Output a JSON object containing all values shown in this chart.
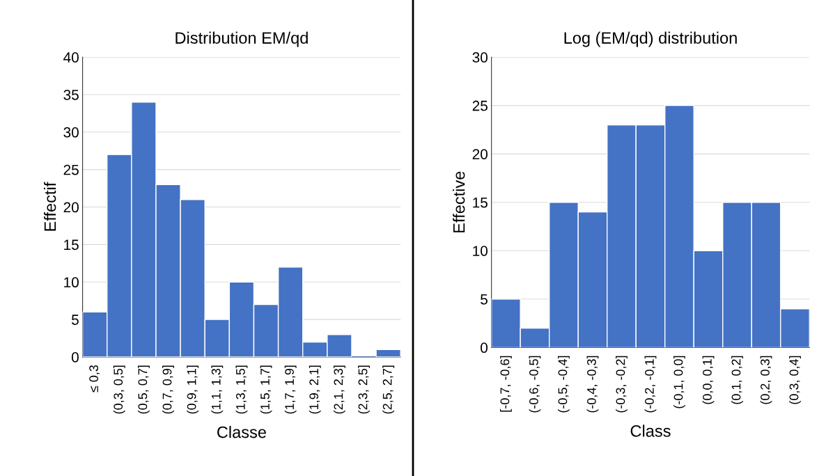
{
  "chart_data": [
    {
      "type": "bar",
      "title": "Distribution EM/qd",
      "xlabel": "Classe",
      "ylabel": "Effectif",
      "categories": [
        "≤ 0,3",
        "(0,3, 0,5]",
        "(0,5, 0,7]",
        "(0,7, 0,9]",
        "(0,9, 1,1]",
        "(1,1, 1,3]",
        "(1,3, 1,5]",
        "(1,5, 1,7]",
        "(1,7, 1,9]",
        "(1,9, 2,1]",
        "(2,1, 2,3]",
        "(2,3, 2,5]",
        "(2,5, 2,7]"
      ],
      "values": [
        6,
        27,
        34,
        23,
        21,
        5,
        10,
        7,
        12,
        2,
        3,
        0,
        1
      ],
      "color": "#4472c4",
      "ylim": [
        0,
        40
      ],
      "yticks": [
        0,
        5,
        10,
        15,
        20,
        25,
        30,
        35,
        40
      ],
      "grid": "y",
      "legend": false
    },
    {
      "type": "bar",
      "title": "Log (EM/qd) distribution",
      "xlabel": "Class",
      "ylabel": "Effective",
      "categories": [
        "[-0,7, -0,6]",
        "(-0,6, -0,5]",
        "(-0,5, -0,4]",
        "(-0,4, -0,3]",
        "(-0,3, -0,2]",
        "(-0,2, -0,1]",
        "(-0,1, 0,0]",
        "(0,0, 0,1]",
        "(0,1, 0,2]",
        "(0,2, 0,3]",
        "(0,3, 0,4]"
      ],
      "values": [
        5,
        2,
        15,
        14,
        23,
        23,
        25,
        10,
        15,
        15,
        4
      ],
      "color": "#4472c4",
      "ylim": [
        0,
        30
      ],
      "yticks": [
        0,
        5,
        10,
        15,
        20,
        25,
        30
      ],
      "grid": "y",
      "legend": false
    }
  ]
}
